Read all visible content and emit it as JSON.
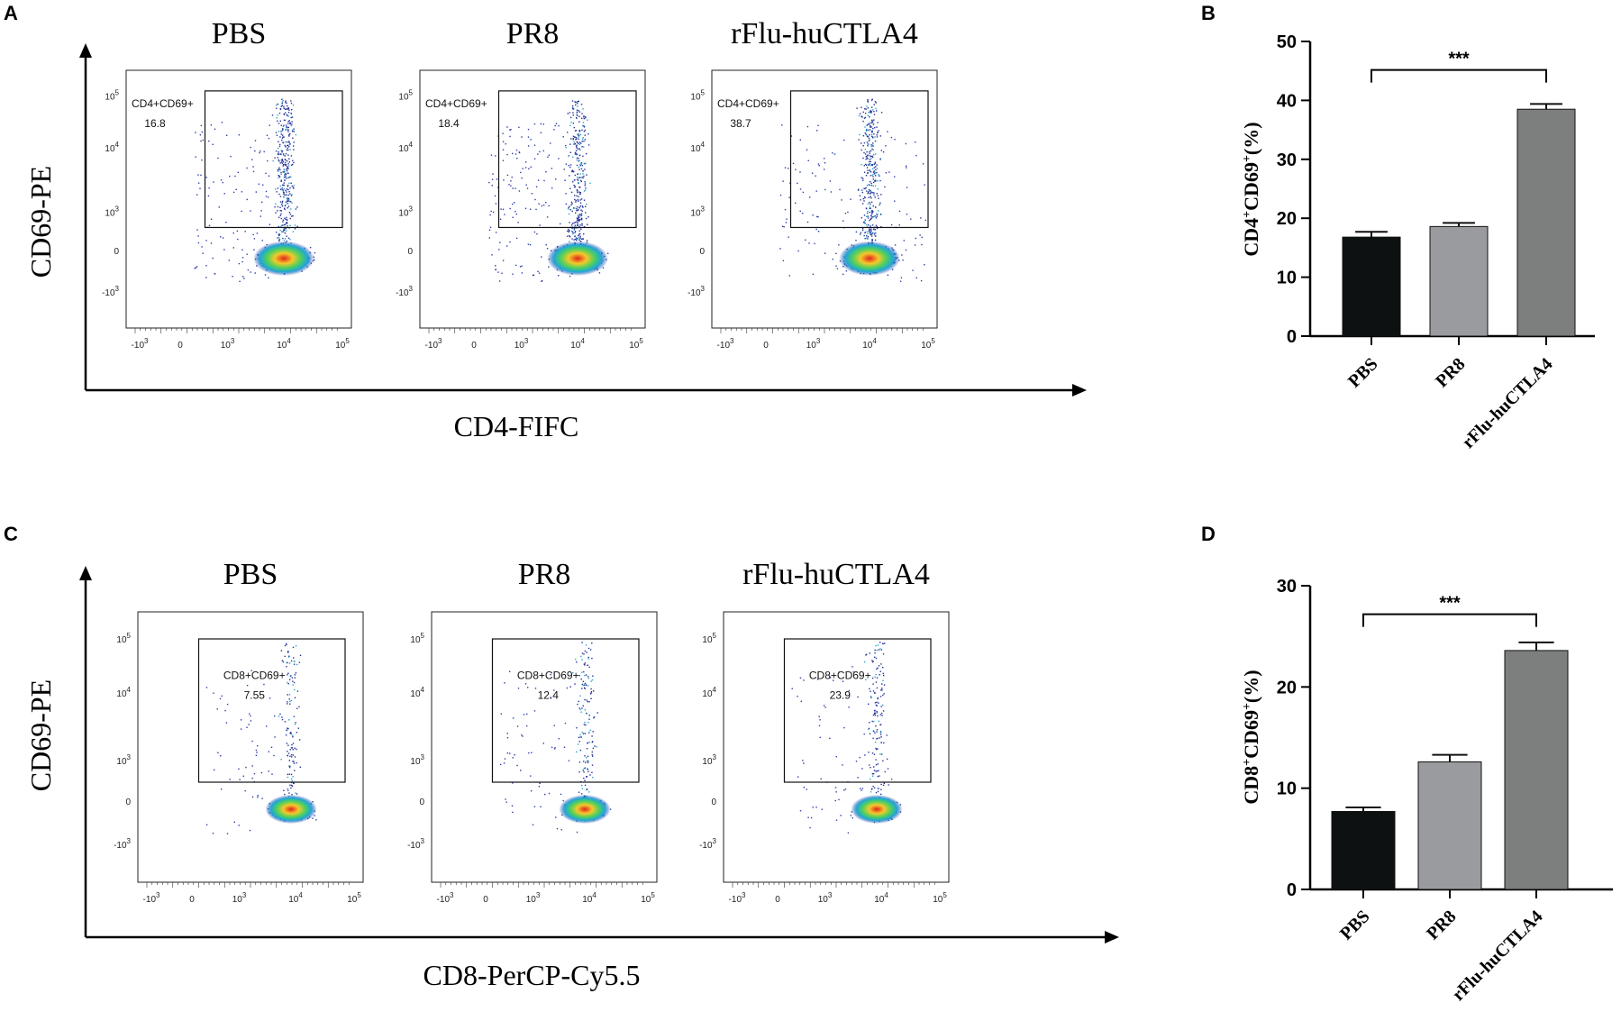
{
  "panels": {
    "A": {
      "label": "A",
      "y_axis_title": "CD69-PE",
      "x_axis_title": "CD4-FIFC",
      "plots": [
        {
          "group": "PBS",
          "gate_name": "CD4+CD69+",
          "gate_value": "16.8"
        },
        {
          "group": "PR8",
          "gate_name": "CD4+CD69+",
          "gate_value": "18.4"
        },
        {
          "group": "rFlu-huCTLA4",
          "gate_name": "CD4+CD69+",
          "gate_value": "38.7"
        }
      ]
    },
    "C": {
      "label": "C",
      "y_axis_title": "CD69-PE",
      "x_axis_title": "CD8-PerCP-Cy5.5",
      "plots": [
        {
          "group": "PBS",
          "gate_name": "CD8+CD69+",
          "gate_value": "7.55"
        },
        {
          "group": "PR8",
          "gate_name": "CD8+CD69+",
          "gate_value": "12.4"
        },
        {
          "group": "rFlu-huCTLA4",
          "gate_name": "CD8+CD69+",
          "gate_value": "23.9"
        }
      ]
    },
    "B": {
      "label": "B"
    },
    "D": {
      "label": "D"
    }
  },
  "flow_ticks": {
    "y": [
      {
        "base": "10",
        "exp": "5"
      },
      {
        "base": "10",
        "exp": "4"
      },
      {
        "base": "10",
        "exp": "3"
      },
      {
        "base": "0",
        "exp": ""
      },
      {
        "base": "-10",
        "exp": "3"
      }
    ],
    "x": [
      {
        "base": "-10",
        "exp": "3"
      },
      {
        "base": "0",
        "exp": ""
      },
      {
        "base": "10",
        "exp": "3"
      },
      {
        "base": "10",
        "exp": "4"
      },
      {
        "base": "10",
        "exp": "5"
      }
    ]
  },
  "chart_data": [
    {
      "panel": "B",
      "type": "bar",
      "ylabel": "CD4+CD69+(%)",
      "ylabel_parts": {
        "a": "CD4",
        "b": "+",
        "c": "CD69",
        "d": "+",
        "e": "(%)"
      },
      "categories": [
        "PBS",
        "PR8",
        "rFlu-huCTLA4"
      ],
      "values": [
        16.8,
        18.6,
        38.5
      ],
      "errors": [
        0.9,
        0.6,
        0.9
      ],
      "colors": [
        "#0d1111",
        "#9a9b9e",
        "#7d7f7e"
      ],
      "ylim": [
        0,
        50
      ],
      "yticks": [
        "0",
        "10",
        "20",
        "30",
        "40",
        "50"
      ],
      "significance": {
        "from": 0,
        "to": 2,
        "label": "***"
      }
    },
    {
      "panel": "D",
      "type": "bar",
      "ylabel": "CD8+CD69+(%)",
      "ylabel_parts": {
        "a": "CD8",
        "b": "+",
        "c": "CD69",
        "d": "+",
        "e": "(%)"
      },
      "categories": [
        "PBS",
        "PR8",
        "rFlu-huCTLA4"
      ],
      "values": [
        7.7,
        12.6,
        23.6
      ],
      "errors": [
        0.4,
        0.7,
        0.8
      ],
      "colors": [
        "#0d1111",
        "#9a9b9e",
        "#7d7f7e"
      ],
      "ylim": [
        0,
        30
      ],
      "yticks": [
        "0",
        "10",
        "20",
        "30"
      ],
      "significance": {
        "from": 0,
        "to": 2,
        "label": "***"
      }
    }
  ]
}
